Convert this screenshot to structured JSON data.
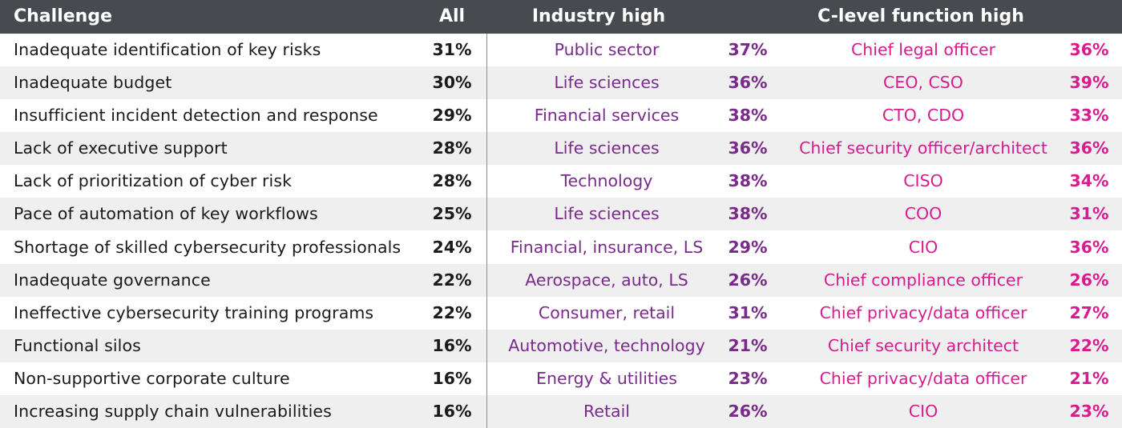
{
  "headers": {
    "challenge": "Challenge",
    "all": "All",
    "industry": "Industry high",
    "function": "C-level function high"
  },
  "rows": [
    {
      "challenge": "Inadequate identification of key risks",
      "all": "31%",
      "industry": "Public sector",
      "industry_pct": "37%",
      "function": "Chief legal officer",
      "function_pct": "36%"
    },
    {
      "challenge": "Inadequate budget",
      "all": "30%",
      "industry": "Life sciences",
      "industry_pct": "36%",
      "function": "CEO, CSO",
      "function_pct": "39%"
    },
    {
      "challenge": "Insufficient incident detection and response",
      "all": "29%",
      "industry": "Financial services",
      "industry_pct": "38%",
      "function": "CTO, CDO",
      "function_pct": "33%"
    },
    {
      "challenge": "Lack of executive support",
      "all": "28%",
      "industry": "Life sciences",
      "industry_pct": "36%",
      "function": "Chief security officer/architect",
      "function_pct": "36%"
    },
    {
      "challenge": "Lack of prioritization of cyber risk",
      "all": "28%",
      "industry": "Technology",
      "industry_pct": "38%",
      "function": "CISO",
      "function_pct": "34%"
    },
    {
      "challenge": "Pace of automation of key workflows",
      "all": "25%",
      "industry": "Life sciences",
      "industry_pct": "38%",
      "function": "COO",
      "function_pct": "31%"
    },
    {
      "challenge": "Shortage of skilled cybersecurity professionals",
      "all": "24%",
      "industry": "Financial, insurance, LS",
      "industry_pct": "29%",
      "function": "CIO",
      "function_pct": "36%"
    },
    {
      "challenge": "Inadequate governance",
      "all": "22%",
      "industry": "Aerospace, auto, LS",
      "industry_pct": "26%",
      "function": "Chief compliance officer",
      "function_pct": "26%"
    },
    {
      "challenge": "Ineffective cybersecurity training programs",
      "all": "22%",
      "industry": "Consumer, retail",
      "industry_pct": "31%",
      "function": "Chief privacy/data officer",
      "function_pct": "27%"
    },
    {
      "challenge": "Functional silos",
      "all": "16%",
      "industry": "Automotive, technology",
      "industry_pct": "21%",
      "function": "Chief security architect",
      "function_pct": "22%"
    },
    {
      "challenge": "Non-supportive corporate culture",
      "all": "16%",
      "industry": "Energy & utilities",
      "industry_pct": "23%",
      "function": "Chief privacy/data officer",
      "function_pct": "21%"
    },
    {
      "challenge": "Increasing supply chain vulnerabilities",
      "all": "16%",
      "industry": "Retail",
      "industry_pct": "26%",
      "function": "CIO",
      "function_pct": "23%"
    }
  ],
  "colors": {
    "header_bg": "#474a4f",
    "industry_text": "#7a2a8c",
    "function_text": "#d81b8f",
    "stripe_bg": "#efefef"
  }
}
